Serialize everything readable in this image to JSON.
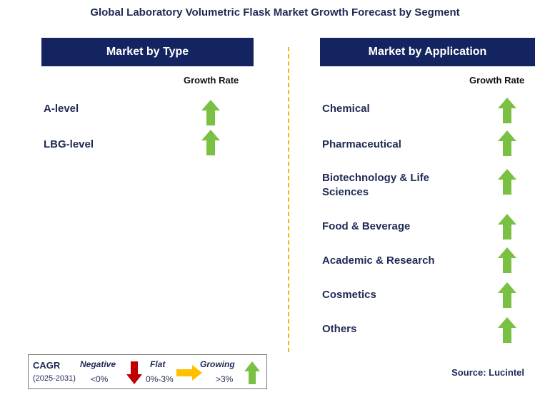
{
  "title": "Global Laboratory Volumetric Flask Market Growth Forecast by Segment",
  "chart_data": [
    {
      "type": "table",
      "panel": "Market by Type",
      "column_header": "Growth Rate",
      "rows": [
        {
          "segment": "A-level",
          "trend": "growing",
          "color": "#7ac143"
        },
        {
          "segment": "LBG-level",
          "trend": "growing",
          "color": "#7ac143"
        }
      ]
    },
    {
      "type": "table",
      "panel": "Market by Application",
      "column_header": "Growth Rate",
      "rows": [
        {
          "segment": "Chemical",
          "trend": "growing",
          "color": "#7ac143"
        },
        {
          "segment": "Pharmaceutical",
          "trend": "growing",
          "color": "#7ac143"
        },
        {
          "segment": "Biotechnology & Life Sciences",
          "trend": "growing",
          "color": "#7ac143"
        },
        {
          "segment": "Food & Beverage",
          "trend": "growing",
          "color": "#7ac143"
        },
        {
          "segment": "Academic & Research",
          "trend": "growing",
          "color": "#7ac143"
        },
        {
          "segment": "Cosmetics",
          "trend": "growing",
          "color": "#7ac143"
        },
        {
          "segment": "Others",
          "trend": "growing",
          "color": "#7ac143"
        }
      ]
    }
  ],
  "legend": {
    "label": "CAGR",
    "period": "(2025-2031)",
    "negative": {
      "label": "Negative",
      "range": "<0%",
      "color": "#c00000",
      "icon": "down-arrow-icon"
    },
    "flat": {
      "label": "Flat",
      "range": "0%-3%",
      "color": "#ffc000",
      "icon": "right-arrow-icon"
    },
    "growing": {
      "label": "Growing",
      "range": ">3%",
      "color": "#7ac143",
      "icon": "up-arrow-icon"
    }
  },
  "source": "Source: Lucintel",
  "colors": {
    "header_bg": "#142460",
    "divider": "#f2b705",
    "text": "#1f2a55"
  }
}
